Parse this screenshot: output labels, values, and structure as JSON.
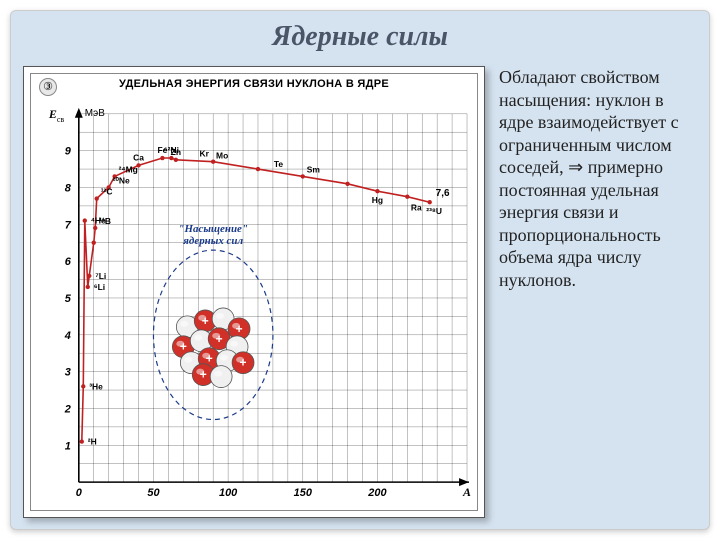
{
  "title": "Ядерные силы",
  "side_text": "Обладают свойством насыщения: нуклон в ядре взаимодействует с ограниченным числом соседей, ⇒ примерно постоянная удельная энергия связи и пропорциональность объема ядра числу нуклонов.",
  "chart": {
    "type": "line",
    "circled_number": "③",
    "header": "УДЕЛЬНАЯ ЭНЕРГИЯ СВЯЗИ НУКЛОНА В ЯДРЕ",
    "y_label_main": "E_св",
    "y_label_unit": "МэВ",
    "x_label": "A",
    "xlim": [
      0,
      260
    ],
    "ylim": [
      0,
      10
    ],
    "xtick_step": 50,
    "ytick_step": 1,
    "xtick_labels": [
      "0",
      "50",
      "100",
      "150",
      "200"
    ],
    "grid_color": "#000000",
    "grid_width": 0.4,
    "background_color": "#ffffff",
    "axis_color": "#000000",
    "series": {
      "points_A": [
        2,
        3,
        4,
        6,
        7,
        10,
        11,
        12,
        20,
        24,
        40,
        56,
        62,
        65,
        90,
        120,
        150,
        180,
        200,
        220,
        235
      ],
      "points_E": [
        1.1,
        2.6,
        7.1,
        5.3,
        5.6,
        6.5,
        6.9,
        7.7,
        8.0,
        8.3,
        8.6,
        8.8,
        8.8,
        8.75,
        8.7,
        8.5,
        8.3,
        8.1,
        7.9,
        7.75,
        7.6
      ],
      "line_color": "#c02020",
      "line_width": 1.6,
      "marker_color": "#c02020",
      "marker_size": 2.2
    },
    "end_label": "7,6",
    "annotated_nuclides": [
      {
        "label": "²H",
        "A": 2,
        "E": 1.1
      },
      {
        "label": "³He",
        "A": 3,
        "E": 2.6
      },
      {
        "label": "⁴He",
        "A": 4,
        "E": 7.1
      },
      {
        "label": "⁶Li",
        "A": 6,
        "E": 5.3
      },
      {
        "label": "⁷Li",
        "A": 7,
        "E": 5.6
      },
      {
        "label": "¹¹B",
        "A": 11,
        "E": 6.9
      },
      {
        "label": "¹²C",
        "A": 12,
        "E": 7.7
      },
      {
        "label": "²⁰Ne",
        "A": 20,
        "E": 8.0
      },
      {
        "label": "²⁴Mg",
        "A": 24,
        "E": 8.3
      },
      {
        "label": "Ca",
        "A": 40,
        "E": 8.6
      },
      {
        "label": "Fe",
        "A": 56,
        "E": 8.8
      },
      {
        "label": "⁶²Ni",
        "A": 62,
        "E": 8.8
      },
      {
        "label": "Zn",
        "A": 65,
        "E": 8.75
      },
      {
        "label": "Kr",
        "A": 84,
        "E": 8.7
      },
      {
        "label": "Mo",
        "A": 96,
        "E": 8.65
      },
      {
        "label": "Te",
        "A": 128,
        "E": 8.45
      },
      {
        "label": "Sm",
        "A": 150,
        "E": 8.3
      },
      {
        "label": "Hg",
        "A": 200,
        "E": 7.9
      },
      {
        "label": "Ra",
        "A": 226,
        "E": 7.7
      },
      {
        "label": "²³⁸U",
        "A": 238,
        "E": 7.6
      }
    ],
    "inset": {
      "caption": "\"Насыщение\"\nядерных сил",
      "caption_color": "#1a3a8a",
      "caption_fontstyle": "italic",
      "dash_color": "#1a3a8a",
      "proton_color": "#d03028",
      "neutron_color": "#f0f0f0",
      "outline_color": "#555555",
      "plus_color": "#ffffff",
      "center_A": 90,
      "center_E": 4.0,
      "radius_A": 40,
      "radius_E": 2.3
    }
  },
  "colors": {
    "slide_bg": "#d5e3f0",
    "title_color": "#4a5568"
  }
}
